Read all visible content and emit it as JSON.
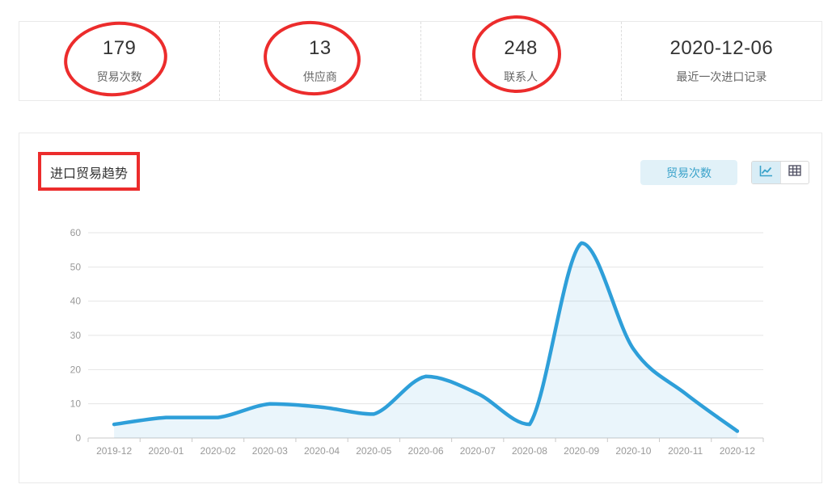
{
  "stats": {
    "items": [
      {
        "value": "179",
        "label": "贸易次数",
        "circled": true
      },
      {
        "value": "13",
        "label": "供应商",
        "circled": true
      },
      {
        "value": "248",
        "label": "联系人",
        "circled": true
      },
      {
        "value": "2020-12-06",
        "label": "最近一次进口记录",
        "circled": false
      }
    ]
  },
  "trend": {
    "title": "进口贸易趋势",
    "metric_button": "贸易次数",
    "view_toggle": {
      "selected": "line",
      "options": [
        "line-chart",
        "table"
      ]
    }
  },
  "chart_data": {
    "type": "area",
    "smooth": true,
    "grid": true,
    "legend": "none",
    "x": [
      "2019-12",
      "2020-01",
      "2020-02",
      "2020-03",
      "2020-04",
      "2020-05",
      "2020-06",
      "2020-07",
      "2020-08",
      "2020-09",
      "2020-10",
      "2020-11",
      "2020-12"
    ],
    "series": [
      {
        "name": "贸易次数",
        "values": [
          4,
          6,
          6,
          10,
          9,
          7,
          18,
          13,
          4,
          57,
          26,
          13,
          2
        ]
      }
    ],
    "ylim": [
      0,
      60
    ],
    "yticks": [
      0,
      10,
      20,
      30,
      40,
      50,
      60
    ],
    "xlabel": "",
    "ylabel": "",
    "line_color": "#2e9fd9",
    "fill_color": "rgba(46,159,217,0.10)",
    "gridline_color": "#e5e5e5",
    "axis_color": "#c9c9c9",
    "tick_label_color": "#999999"
  },
  "annotations": {
    "color": "#ec2c2c"
  }
}
